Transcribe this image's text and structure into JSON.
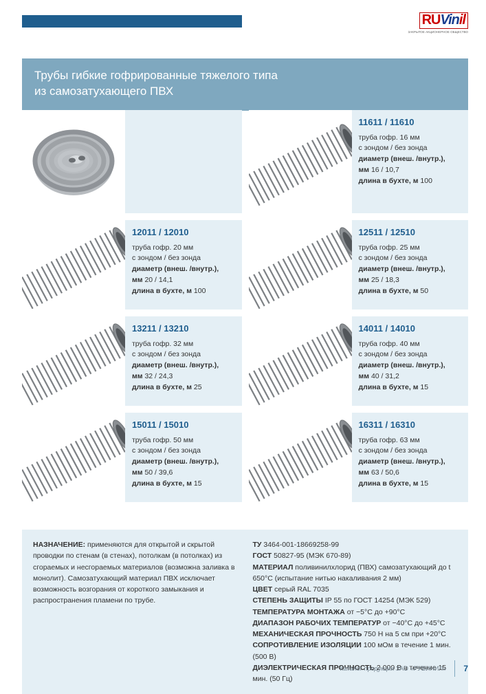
{
  "colors": {
    "header_bar": "#1f5e8e",
    "title_bg": "#7fa8bf",
    "card_bg": "#e4eff5",
    "code_color": "#1f5e8e",
    "logo_red": "#cc0000",
    "logo_blue": "#1a3d8f",
    "pipe_gray": "#9da2a6",
    "pipe_light": "#c8ccd0"
  },
  "logo": {
    "part1": "RU",
    "part2": "Vin",
    "part3": "il",
    "sub": "ЗАКРЫТОЕ АКЦИОНЕРНОЕ ОБЩЕСТВО"
  },
  "title": "Трубы гибкие гофрированные тяжелого типа\nиз самозатухающего ПВХ",
  "products": [
    {
      "code": "11611 / 11610",
      "desc": "труба гофр. 16 мм",
      "probe": "с зондом / без зонда",
      "diam_label": "диаметр (внеш. /внутр.),",
      "diam_val": "мм 16 / 10,7",
      "len_label": "длина в бухте, м",
      "len_val": "100"
    },
    {
      "code": "12011 / 12010",
      "desc": "труба гофр. 20 мм",
      "probe": "с зондом / без зонда",
      "diam_label": "диаметр (внеш. /внутр.),",
      "diam_val": "мм 20 / 14,1",
      "len_label": "длина в бухте, м",
      "len_val": "100"
    },
    {
      "code": "12511 / 12510",
      "desc": "труба гофр. 25 мм",
      "probe": "с зондом / без зонда",
      "diam_label": "диаметр (внеш. /внутр.),",
      "diam_val": "мм 25 / 18,3",
      "len_label": "длина в бухте, м",
      "len_val": "50"
    },
    {
      "code": "13211 / 13210",
      "desc": "труба гофр. 32 мм",
      "probe": "с зондом / без зонда",
      "diam_label": "диаметр (внеш. /внутр.),",
      "diam_val": "мм 32 / 24,3",
      "len_label": "длина в бухте, м",
      "len_val": "25"
    },
    {
      "code": "14011 / 14010",
      "desc": "труба гофр. 40 мм",
      "probe": "с зондом / без зонда",
      "diam_label": "диаметр (внеш. /внутр.),",
      "diam_val": "мм 40 / 31,2",
      "len_label": "длина в бухте, м",
      "len_val": "15"
    },
    {
      "code": "15011 / 15010",
      "desc": "труба гофр. 50 мм",
      "probe": "с зондом / без зонда",
      "diam_label": "диаметр (внеш. /внутр.),",
      "diam_val": "мм 50 / 39,6",
      "len_label": "длина в бухте, м",
      "len_val": "15"
    },
    {
      "code": "16311 / 16310",
      "desc": "труба гофр. 63 мм",
      "probe": "с зондом / без зонда",
      "diam_label": "диаметр (внеш. /внутр.),",
      "diam_val": "мм 63 / 50,6",
      "len_label": "длина в бухте, м",
      "len_val": "15"
    }
  ],
  "spec_left": {
    "h": "НАЗНАЧЕНИЕ:",
    "t": " применяются для открытой и скрытой проводки по стенам (в стенах), потолкам (в потолках) из сгораемых и несгораемых материалов (возможна заливка в монолит). Самозатухающий материал ПВХ исключает возможность возгорания от короткого замыкания и распространения пламени по трубе."
  },
  "spec_right": [
    {
      "b": "ТУ",
      "t": " 3464-001-18669258-99"
    },
    {
      "b": "ГОСТ",
      "t": " 50827-95 (МЭК 670-89)"
    },
    {
      "b": "МАТЕРИАЛ",
      "t": " поливинилхлорид (ПВХ) самозатухающий до t 650°С (испытание нитью накаливания 2 мм)"
    },
    {
      "b": "ЦВЕТ",
      "t": " серый RAL 7035"
    },
    {
      "b": "СТЕПЕНЬ ЗАЩИТЫ",
      "t": " IP 55 по ГОСТ 14254 (МЭК 529)"
    },
    {
      "b": "ТЕМПЕРАТУРА МОНТАЖА",
      "t": " от −5°С до +90°С"
    },
    {
      "b": "ДИАПАЗОН РАБОЧИХ ТЕМПЕРАТУР",
      "t": " от −40°С до +45°С"
    },
    {
      "b": "МЕХАНИЧЕСКАЯ ПРОЧНОСТЬ",
      "t": " 750 Н на 5 см при +20°С"
    },
    {
      "b": "СОПРОТИВЛЕНИЕ ИЗОЛЯЦИИ",
      "t": " 100 мОм в течение 1 мин. (500 В)"
    },
    {
      "b": "ДИЭЛЕКТРИЧЕСКАЯ ПРОЧНОСТЬ",
      "t": " 2 000 В в течение 15 мин. (50 Гц)"
    }
  ],
  "footer": {
    "text": "Каталог продукции ЗАО «РУВИНИЛ»",
    "page": "7"
  }
}
